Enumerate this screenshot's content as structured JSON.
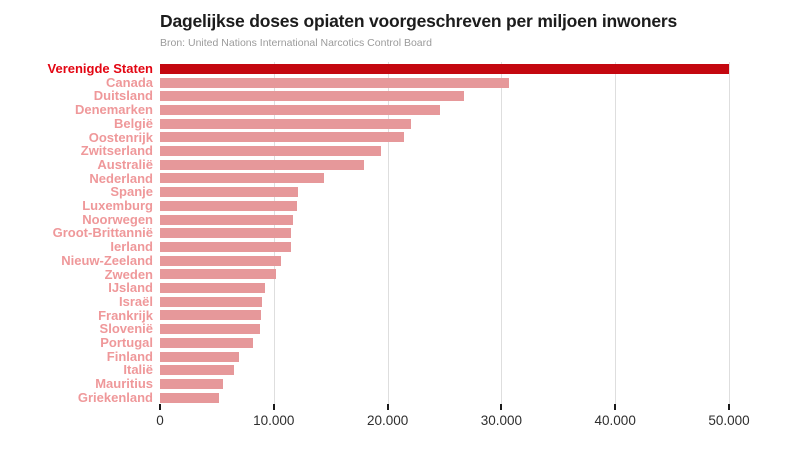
{
  "header": {
    "title": "Dagelijkse doses opiaten voorgeschreven per miljoen inwoners",
    "subtitle": "Bron: United Nations International Narcotics Control Board"
  },
  "colors": {
    "title_text": "#1c1c1c",
    "subtitle_text": "#9b9b9b",
    "highlight_bar": "#c4070f",
    "bar": "#e6989a",
    "highlight_label": "#e30613",
    "label": "#ef989a",
    "gridline": "#dedede",
    "tick": "#1a1a1a",
    "axis_text": "#2e2e2e",
    "background": "#ffffff"
  },
  "chart_data": {
    "type": "bar",
    "orientation": "horizontal",
    "title": "Dagelijkse doses opiaten voorgeschreven per miljoen inwoners",
    "subtitle": "Bron: United Nations International Narcotics Control Board",
    "categories": [
      "Verenigde Staten",
      "Canada",
      "Duitsland",
      "Denemarken",
      "België",
      "Oostenrijk",
      "Zwitserland",
      "Australië",
      "Nederland",
      "Spanje",
      "Luxemburg",
      "Noorwegen",
      "Groot-Brittannië",
      "Ierland",
      "Nieuw-Zeeland",
      "Zweden",
      "IJsland",
      "Israël",
      "Frankrijk",
      "Slovenië",
      "Portugal",
      "Finland",
      "Italië",
      "Mauritius",
      "Griekenland"
    ],
    "values": [
      50000,
      30700,
      26700,
      24600,
      22100,
      21400,
      19400,
      17900,
      14400,
      12100,
      12000,
      11700,
      11500,
      11500,
      10600,
      10200,
      9200,
      9000,
      8900,
      8800,
      8200,
      6900,
      6500,
      5500,
      5200
    ],
    "highlight_category": "Verenigde Staten",
    "xlim": [
      0,
      50000
    ],
    "x_ticks": [
      0,
      10000,
      20000,
      30000,
      40000,
      50000
    ],
    "x_tick_labels": [
      "0",
      "10.000",
      "20.000",
      "30.000",
      "40.000",
      "50.000"
    ],
    "grid": "vertical-only",
    "legend": "none"
  }
}
